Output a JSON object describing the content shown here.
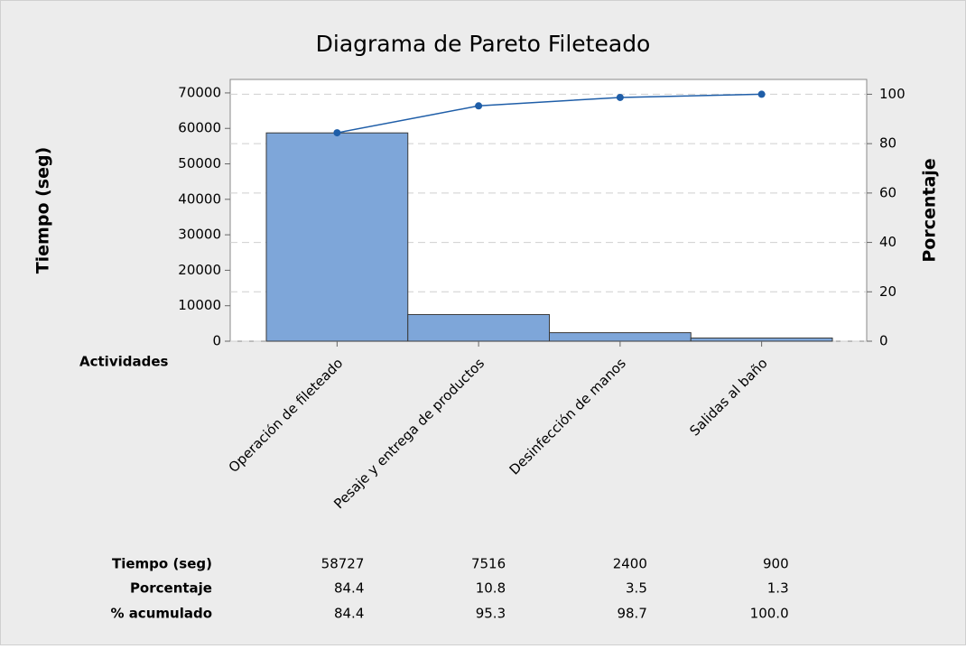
{
  "chart_data": {
    "type": "pareto",
    "title": "Diagrama de Pareto Fileteado",
    "ylabel": "Tiempo (seg)",
    "y2label": "Porcentaje",
    "xlabel": "Actividades",
    "categories": [
      "Operación de fileteado",
      "Pesaje y entrega de productos",
      "Desinfección de manos",
      "Salidas al baño"
    ],
    "series": [
      {
        "name": "Tiempo (seg)",
        "color": "#7ea6d9",
        "values": [
          58727,
          7516,
          2400,
          900
        ]
      },
      {
        "name": "% acumulado",
        "color": "#1f5ea8",
        "axis": "y2",
        "values": [
          84.4,
          95.3,
          98.7,
          100
        ],
        "value_labels": [
          "84.4",
          "95.3",
          "98.7",
          "100.0"
        ]
      }
    ],
    "percent": {
      "name": "Porcentaje",
      "values": [
        84.4,
        10.8,
        3.5,
        1.3
      ]
    },
    "ylim": [
      0,
      73800
    ],
    "yticks": [
      0,
      10000,
      20000,
      30000,
      40000,
      50000,
      60000,
      70000
    ],
    "y2lim": [
      0,
      106
    ],
    "y2ticks": [
      0,
      20,
      40,
      60,
      80,
      100
    ],
    "grid": true
  }
}
